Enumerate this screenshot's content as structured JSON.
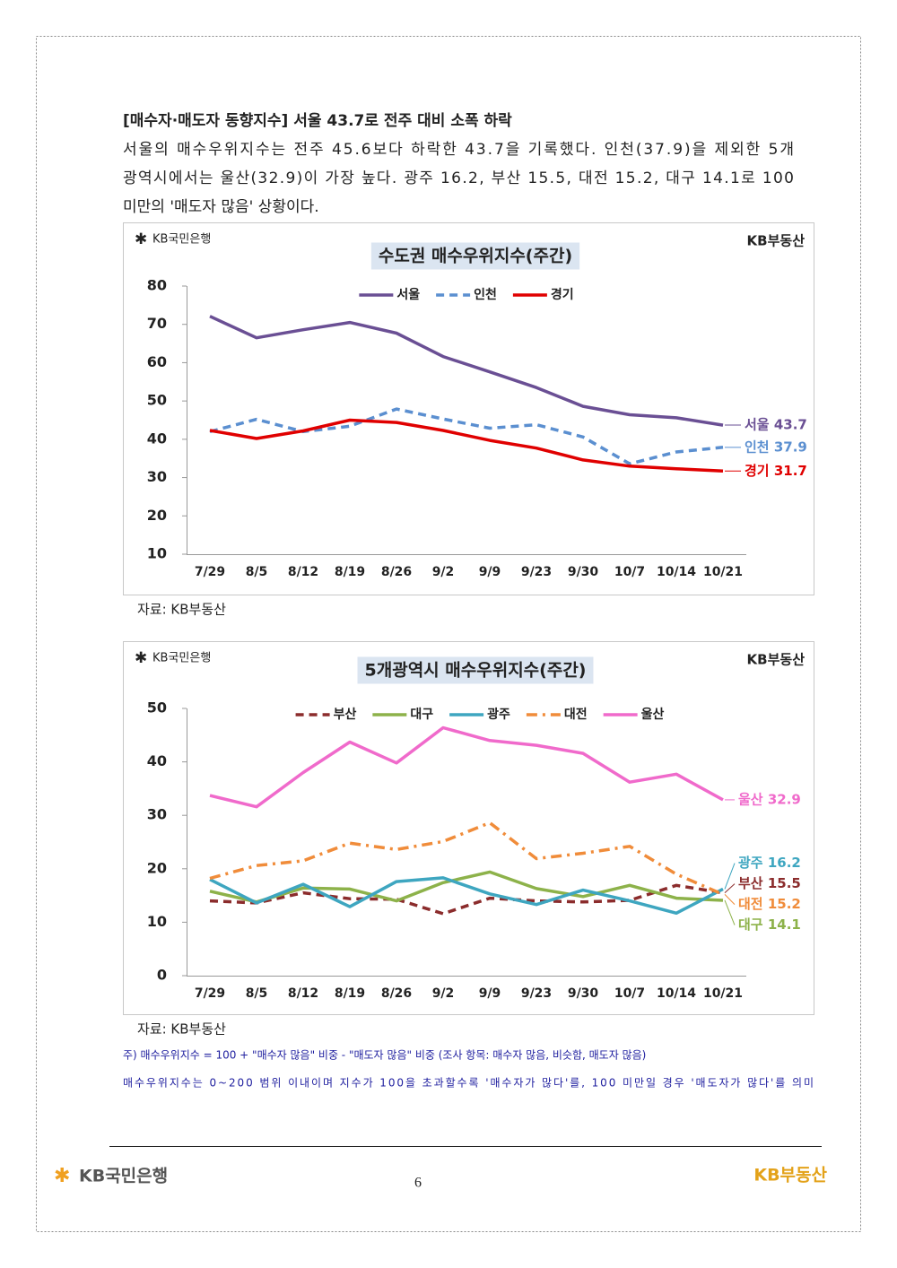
{
  "header": {
    "title": "[매수자·매도자 동향지수] 서울 43.7로 전주 대비 소폭 하락",
    "lines": [
      "서울의 매수우위지수는 전주 45.6보다 하락한 43.7을 기록했다. 인천(37.9)을 제외한 5개",
      "광역시에서는 울산(32.9)이 가장 높다. 광주 16.2, 부산 15.5, 대전 15.2, 대구 14.1로 100",
      "미만의 '매도자 많음' 상황이다."
    ]
  },
  "brands": {
    "bank": "KB국민은행",
    "real_estate": "KB부동산"
  },
  "chart_data": [
    {
      "type": "line",
      "title": "수도권 매수우위지수(주간)",
      "categories": [
        "7/29",
        "8/5",
        "8/12",
        "8/19",
        "8/26",
        "9/2",
        "9/9",
        "9/23",
        "9/30",
        "10/7",
        "10/14",
        "10/21"
      ],
      "series": [
        {
          "name": "서울",
          "color": "#6a4f94",
          "linestyle": "solid",
          "end_label": "서울 43.7",
          "values": [
            72.1,
            66.5,
            68.6,
            70.5,
            67.7,
            61.6,
            57.6,
            53.5,
            48.6,
            46.4,
            45.6,
            43.7
          ]
        },
        {
          "name": "인천",
          "color": "#5b8fd0",
          "linestyle": "dashed",
          "end_label": "인천 37.9",
          "values": [
            42.0,
            45.2,
            42.0,
            43.4,
            47.9,
            45.3,
            42.9,
            43.8,
            40.6,
            33.6,
            36.7,
            37.9
          ]
        },
        {
          "name": "경기",
          "color": "#e00000",
          "linestyle": "solid",
          "end_label": "경기 31.7",
          "values": [
            42.3,
            40.2,
            42.2,
            45.0,
            44.4,
            42.3,
            39.7,
            37.7,
            34.6,
            33.0,
            32.3,
            31.7
          ]
        }
      ],
      "ylim": [
        10,
        80
      ],
      "yticks": [
        10,
        20,
        30,
        40,
        50,
        60,
        70,
        80
      ],
      "legend": "top"
    },
    {
      "type": "line",
      "title": "5개광역시 매수우위지수(주간)",
      "categories": [
        "7/29",
        "8/5",
        "8/12",
        "8/19",
        "8/26",
        "9/2",
        "9/9",
        "9/23",
        "9/30",
        "10/7",
        "10/14",
        "10/21"
      ],
      "series": [
        {
          "name": "부산",
          "color": "#8b2c2c",
          "linestyle": "dashed",
          "end_label": "부산 15.5",
          "values": [
            14.0,
            13.6,
            15.5,
            14.4,
            14.3,
            11.6,
            14.5,
            14.0,
            13.8,
            14.1,
            16.9,
            15.5
          ]
        },
        {
          "name": "대구",
          "color": "#8db24a",
          "linestyle": "solid",
          "end_label": "대구 14.1",
          "values": [
            15.8,
            13.8,
            16.4,
            16.2,
            14.0,
            17.4,
            19.4,
            16.3,
            14.8,
            16.9,
            14.5,
            14.1
          ]
        },
        {
          "name": "광주",
          "color": "#3ea6c0",
          "linestyle": "solid",
          "end_label": "광주 16.2",
          "values": [
            18.0,
            13.6,
            17.1,
            12.9,
            17.6,
            18.3,
            15.3,
            13.3,
            16.0,
            14.0,
            11.7,
            16.2
          ]
        },
        {
          "name": "대전",
          "color": "#f08c3a",
          "linestyle": "dashdot",
          "end_label": "대전 15.2",
          "values": [
            18.2,
            20.6,
            21.5,
            24.8,
            23.6,
            25.1,
            28.6,
            21.9,
            22.9,
            24.2,
            19.0,
            15.2
          ]
        },
        {
          "name": "울산",
          "color": "#f06acb",
          "linestyle": "solid",
          "end_label": "울산 32.9",
          "values": [
            33.7,
            31.6,
            38.0,
            43.7,
            39.8,
            46.4,
            44.0,
            43.1,
            41.6,
            36.2,
            37.7,
            32.9
          ]
        }
      ],
      "ylim": [
        0,
        50
      ],
      "yticks": [
        0,
        10,
        20,
        30,
        40,
        50
      ],
      "legend": "top"
    }
  ],
  "sources": [
    "자료: KB부동산",
    "자료: KB부동산"
  ],
  "notes": [
    "주) 매수우위지수 = 100 + \"매수자 많음\" 비중 - \"매도자 많음\" 비중  (조사 항목: 매수자 많음, 비슷함, 매도자 많음)",
    "매수우위지수는 0~200 범위 이내이며 지수가 100을 초과할수록 '매수자가 많다'를, 100 미만일 경우 '매도자가 많다'를 의미"
  ],
  "footer": {
    "page": "6"
  }
}
